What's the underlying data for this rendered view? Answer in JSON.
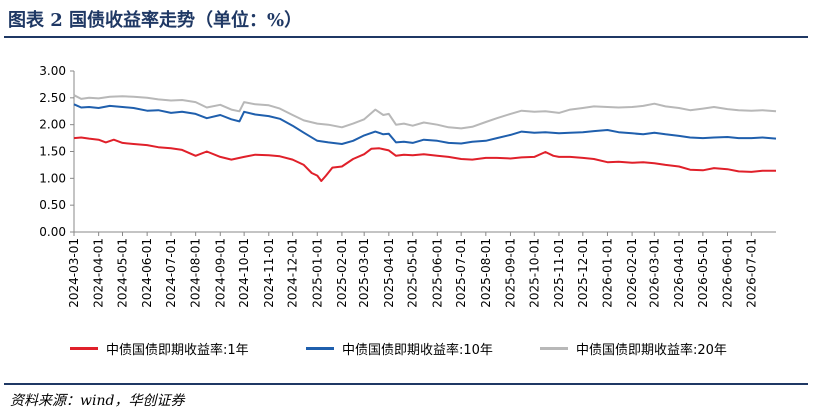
{
  "figure": {
    "title": "图表 2   国债收益率走势（单位：%）",
    "source": "资料来源：wind，华创证券"
  },
  "chart_data": {
    "type": "line",
    "title": "",
    "xlabel": "",
    "ylabel": "",
    "ylim": [
      0,
      3
    ],
    "y_ticks": [
      "3.00",
      "2.50",
      "2.00",
      "1.50",
      "1.00",
      "0.50",
      "0.00"
    ],
    "x_ticks": [
      "2024-03-01",
      "2024-04-01",
      "2024-05-01",
      "2024-06-01",
      "2024-07-01",
      "2024-08-01",
      "2024-09-01",
      "2024-10-01",
      "2024-11-01",
      "2024-12-01",
      "2025-01-01",
      "2025-02-01",
      "2025-03-01",
      "2025-04-01",
      "2025-05-01",
      "2025-06-01",
      "2025-07-01",
      "2025-08-01",
      "2025-09-01",
      "2025-10-01",
      "2025-11-01",
      "2025-12-01",
      "2026-01-01",
      "2026-02-01",
      "2026-03-01",
      "2026-04-01",
      "2026-05-01",
      "2026-06-01",
      "2026-07-01"
    ],
    "x_range": [
      "2024-03-01",
      "2026-08-01"
    ],
    "legend_position": "bottom",
    "grid": false,
    "series": [
      {
        "name": "中债国债即期收益率:1年",
        "color": "#e0202a",
        "points": [
          [
            "2024-03-01",
            1.75
          ],
          [
            "2024-03-10",
            1.76
          ],
          [
            "2024-03-20",
            1.74
          ],
          [
            "2024-04-01",
            1.72
          ],
          [
            "2024-04-10",
            1.67
          ],
          [
            "2024-04-20",
            1.72
          ],
          [
            "2024-05-01",
            1.66
          ],
          [
            "2024-05-15",
            1.64
          ],
          [
            "2024-06-01",
            1.62
          ],
          [
            "2024-06-15",
            1.58
          ],
          [
            "2024-07-01",
            1.56
          ],
          [
            "2024-07-15",
            1.53
          ],
          [
            "2024-08-01",
            1.42
          ],
          [
            "2024-08-15",
            1.5
          ],
          [
            "2024-09-01",
            1.4
          ],
          [
            "2024-09-15",
            1.35
          ],
          [
            "2024-10-01",
            1.4
          ],
          [
            "2024-10-15",
            1.44
          ],
          [
            "2024-11-01",
            1.43
          ],
          [
            "2024-11-15",
            1.41
          ],
          [
            "2024-12-01",
            1.35
          ],
          [
            "2024-12-15",
            1.25
          ],
          [
            "2024-12-25",
            1.1
          ],
          [
            "2025-01-01",
            1.05
          ],
          [
            "2025-01-06",
            0.95
          ],
          [
            "2025-01-12",
            1.05
          ],
          [
            "2025-01-20",
            1.2
          ],
          [
            "2025-02-01",
            1.22
          ],
          [
            "2025-02-15",
            1.36
          ],
          [
            "2025-03-01",
            1.45
          ],
          [
            "2025-03-10",
            1.55
          ],
          [
            "2025-03-20",
            1.56
          ],
          [
            "2025-04-01",
            1.52
          ],
          [
            "2025-04-10",
            1.42
          ],
          [
            "2025-04-20",
            1.44
          ],
          [
            "2025-05-01",
            1.43
          ],
          [
            "2025-05-15",
            1.45
          ],
          [
            "2025-06-01",
            1.42
          ],
          [
            "2025-06-15",
            1.4
          ],
          [
            "2025-07-01",
            1.36
          ],
          [
            "2025-07-15",
            1.35
          ],
          [
            "2025-08-01",
            1.38
          ],
          [
            "2025-08-15",
            1.38
          ],
          [
            "2025-09-01",
            1.37
          ],
          [
            "2025-09-15",
            1.39
          ],
          [
            "2025-10-01",
            1.4
          ],
          [
            "2025-10-15",
            1.49
          ],
          [
            "2025-10-25",
            1.42
          ],
          [
            "2025-11-01",
            1.4
          ],
          [
            "2025-11-15",
            1.4
          ],
          [
            "2025-12-01",
            1.38
          ],
          [
            "2025-12-15",
            1.36
          ],
          [
            "2026-01-01",
            1.3
          ],
          [
            "2026-01-15",
            1.31
          ],
          [
            "2026-02-01",
            1.29
          ],
          [
            "2026-02-15",
            1.3
          ],
          [
            "2026-03-01",
            1.28
          ],
          [
            "2026-03-15",
            1.25
          ],
          [
            "2026-04-01",
            1.22
          ],
          [
            "2026-04-15",
            1.16
          ],
          [
            "2026-05-01",
            1.15
          ],
          [
            "2026-05-15",
            1.19
          ],
          [
            "2026-06-01",
            1.17
          ],
          [
            "2026-06-15",
            1.13
          ],
          [
            "2026-07-01",
            1.12
          ],
          [
            "2026-07-15",
            1.14
          ],
          [
            "2026-08-01",
            1.14
          ]
        ]
      },
      {
        "name": "中债国债即期收益率:10年",
        "color": "#1f5fad",
        "points": [
          [
            "2024-03-01",
            2.38
          ],
          [
            "2024-03-10",
            2.32
          ],
          [
            "2024-03-20",
            2.33
          ],
          [
            "2024-04-01",
            2.31
          ],
          [
            "2024-04-15",
            2.35
          ],
          [
            "2024-05-01",
            2.33
          ],
          [
            "2024-05-15",
            2.31
          ],
          [
            "2024-06-01",
            2.26
          ],
          [
            "2024-06-15",
            2.27
          ],
          [
            "2024-07-01",
            2.22
          ],
          [
            "2024-07-15",
            2.24
          ],
          [
            "2024-08-01",
            2.2
          ],
          [
            "2024-08-15",
            2.12
          ],
          [
            "2024-09-01",
            2.18
          ],
          [
            "2024-09-15",
            2.1
          ],
          [
            "2024-09-25",
            2.06
          ],
          [
            "2024-10-01",
            2.24
          ],
          [
            "2024-10-15",
            2.19
          ],
          [
            "2024-11-01",
            2.16
          ],
          [
            "2024-11-15",
            2.11
          ],
          [
            "2024-12-01",
            1.98
          ],
          [
            "2024-12-15",
            1.85
          ],
          [
            "2025-01-01",
            1.7
          ],
          [
            "2025-01-15",
            1.67
          ],
          [
            "2025-02-01",
            1.64
          ],
          [
            "2025-02-15",
            1.7
          ],
          [
            "2025-03-01",
            1.8
          ],
          [
            "2025-03-15",
            1.87
          ],
          [
            "2025-03-25",
            1.82
          ],
          [
            "2025-04-01",
            1.83
          ],
          [
            "2025-04-10",
            1.67
          ],
          [
            "2025-04-20",
            1.68
          ],
          [
            "2025-05-01",
            1.66
          ],
          [
            "2025-05-15",
            1.72
          ],
          [
            "2025-06-01",
            1.7
          ],
          [
            "2025-06-15",
            1.66
          ],
          [
            "2025-07-01",
            1.65
          ],
          [
            "2025-07-15",
            1.68
          ],
          [
            "2025-08-01",
            1.7
          ],
          [
            "2025-08-15",
            1.75
          ],
          [
            "2025-09-01",
            1.81
          ],
          [
            "2025-09-15",
            1.87
          ],
          [
            "2025-10-01",
            1.85
          ],
          [
            "2025-10-15",
            1.86
          ],
          [
            "2025-11-01",
            1.84
          ],
          [
            "2025-11-15",
            1.85
          ],
          [
            "2025-12-01",
            1.86
          ],
          [
            "2025-12-15",
            1.88
          ],
          [
            "2026-01-01",
            1.9
          ],
          [
            "2026-01-15",
            1.86
          ],
          [
            "2026-02-01",
            1.84
          ],
          [
            "2026-02-15",
            1.82
          ],
          [
            "2026-03-01",
            1.85
          ],
          [
            "2026-03-15",
            1.82
          ],
          [
            "2026-04-01",
            1.79
          ],
          [
            "2026-04-15",
            1.76
          ],
          [
            "2026-05-01",
            1.75
          ],
          [
            "2026-05-15",
            1.76
          ],
          [
            "2026-06-01",
            1.77
          ],
          [
            "2026-06-15",
            1.75
          ],
          [
            "2026-07-01",
            1.75
          ],
          [
            "2026-07-15",
            1.76
          ],
          [
            "2026-08-01",
            1.74
          ]
        ]
      },
      {
        "name": "中债国债即期收益率:20年",
        "color": "#b8b8b8",
        "points": [
          [
            "2024-03-01",
            2.55
          ],
          [
            "2024-03-10",
            2.48
          ],
          [
            "2024-03-20",
            2.5
          ],
          [
            "2024-04-01",
            2.49
          ],
          [
            "2024-04-15",
            2.52
          ],
          [
            "2024-05-01",
            2.53
          ],
          [
            "2024-05-15",
            2.52
          ],
          [
            "2024-06-01",
            2.5
          ],
          [
            "2024-06-15",
            2.47
          ],
          [
            "2024-07-01",
            2.45
          ],
          [
            "2024-07-15",
            2.46
          ],
          [
            "2024-08-01",
            2.42
          ],
          [
            "2024-08-15",
            2.32
          ],
          [
            "2024-09-01",
            2.37
          ],
          [
            "2024-09-15",
            2.28
          ],
          [
            "2024-09-25",
            2.25
          ],
          [
            "2024-10-01",
            2.42
          ],
          [
            "2024-10-15",
            2.38
          ],
          [
            "2024-11-01",
            2.36
          ],
          [
            "2024-11-15",
            2.3
          ],
          [
            "2024-12-01",
            2.18
          ],
          [
            "2024-12-15",
            2.08
          ],
          [
            "2025-01-01",
            2.02
          ],
          [
            "2025-01-15",
            2.0
          ],
          [
            "2025-02-01",
            1.95
          ],
          [
            "2025-02-15",
            2.02
          ],
          [
            "2025-03-01",
            2.1
          ],
          [
            "2025-03-15",
            2.28
          ],
          [
            "2025-03-25",
            2.18
          ],
          [
            "2025-04-01",
            2.2
          ],
          [
            "2025-04-10",
            2.0
          ],
          [
            "2025-04-20",
            2.02
          ],
          [
            "2025-05-01",
            1.98
          ],
          [
            "2025-05-15",
            2.04
          ],
          [
            "2025-06-01",
            2.0
          ],
          [
            "2025-06-15",
            1.95
          ],
          [
            "2025-07-01",
            1.93
          ],
          [
            "2025-07-15",
            1.96
          ],
          [
            "2025-08-01",
            2.05
          ],
          [
            "2025-08-15",
            2.12
          ],
          [
            "2025-09-01",
            2.2
          ],
          [
            "2025-09-15",
            2.26
          ],
          [
            "2025-10-01",
            2.24
          ],
          [
            "2025-10-15",
            2.25
          ],
          [
            "2025-11-01",
            2.22
          ],
          [
            "2025-11-15",
            2.28
          ],
          [
            "2025-12-01",
            2.31
          ],
          [
            "2025-12-15",
            2.34
          ],
          [
            "2026-01-01",
            2.33
          ],
          [
            "2026-01-15",
            2.32
          ],
          [
            "2026-02-01",
            2.33
          ],
          [
            "2026-02-15",
            2.35
          ],
          [
            "2026-03-01",
            2.39
          ],
          [
            "2026-03-15",
            2.34
          ],
          [
            "2026-04-01",
            2.31
          ],
          [
            "2026-04-15",
            2.27
          ],
          [
            "2026-05-01",
            2.3
          ],
          [
            "2026-05-15",
            2.33
          ],
          [
            "2026-06-01",
            2.29
          ],
          [
            "2026-06-15",
            2.27
          ],
          [
            "2026-07-01",
            2.26
          ],
          [
            "2026-07-15",
            2.27
          ],
          [
            "2026-08-01",
            2.25
          ]
        ]
      }
    ]
  }
}
